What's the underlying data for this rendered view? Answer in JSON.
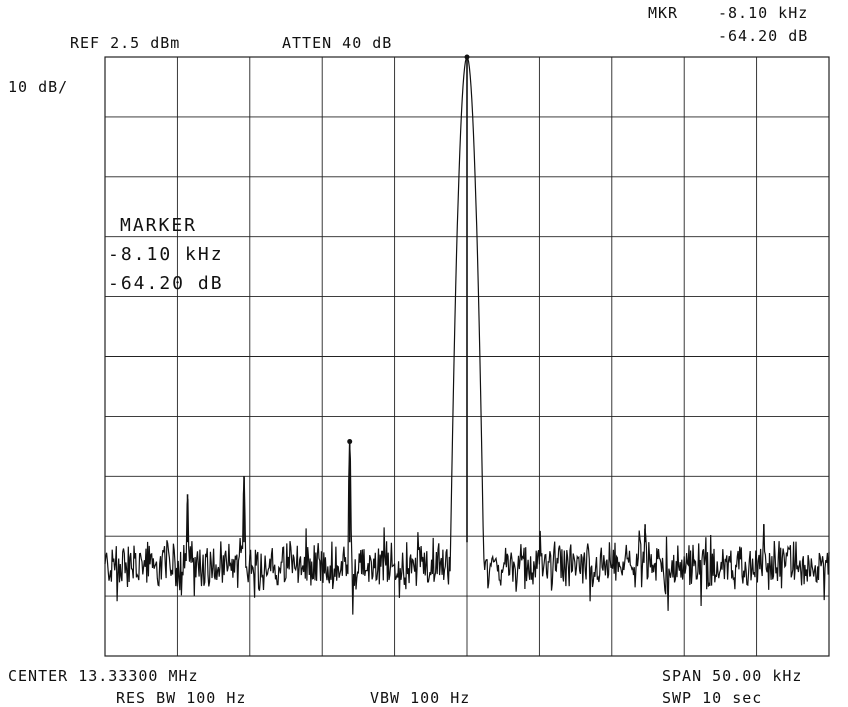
{
  "header": {
    "ref": "REF 2.5 dBm",
    "atten": "ATTEN 40 dB",
    "mkr_label": "MKR",
    "mkr_freq": "-8.10 kHz",
    "mkr_level": "-64.20 dB",
    "scale": "10 dB/"
  },
  "marker_box": {
    "title": "MARKER",
    "freq": "-8.10 kHz",
    "level": "-64.20 dB"
  },
  "footer": {
    "center": "CENTER 13.33300 MHz",
    "span": "SPAN 50.00 kHz",
    "res_bw": "RES BW 100 Hz",
    "vbw": "VBW 100 Hz",
    "swp": "SWP 10  sec"
  },
  "colors": {
    "trace": "#111111",
    "grid": "#222222",
    "background": "#ffffff"
  },
  "chart_data": {
    "type": "line",
    "x_unit": "kHz offset from center",
    "y_unit": "dB relative to reference",
    "xlim": [
      -25,
      25
    ],
    "ylim": [
      -100,
      0
    ],
    "grid": true,
    "divisions": {
      "x": 10,
      "y": 10
    },
    "noise_floor": -85,
    "series": [
      {
        "peaks": [
          {
            "x": -19.3,
            "y": -73
          },
          {
            "x": -15.4,
            "y": -70
          },
          {
            "x": -8.1,
            "y": -64.2,
            "marked": true
          },
          {
            "x": 0.0,
            "y": 0.0
          },
          {
            "x": 12.3,
            "y": -78
          },
          {
            "x": 20.5,
            "y": -78
          }
        ]
      }
    ]
  }
}
